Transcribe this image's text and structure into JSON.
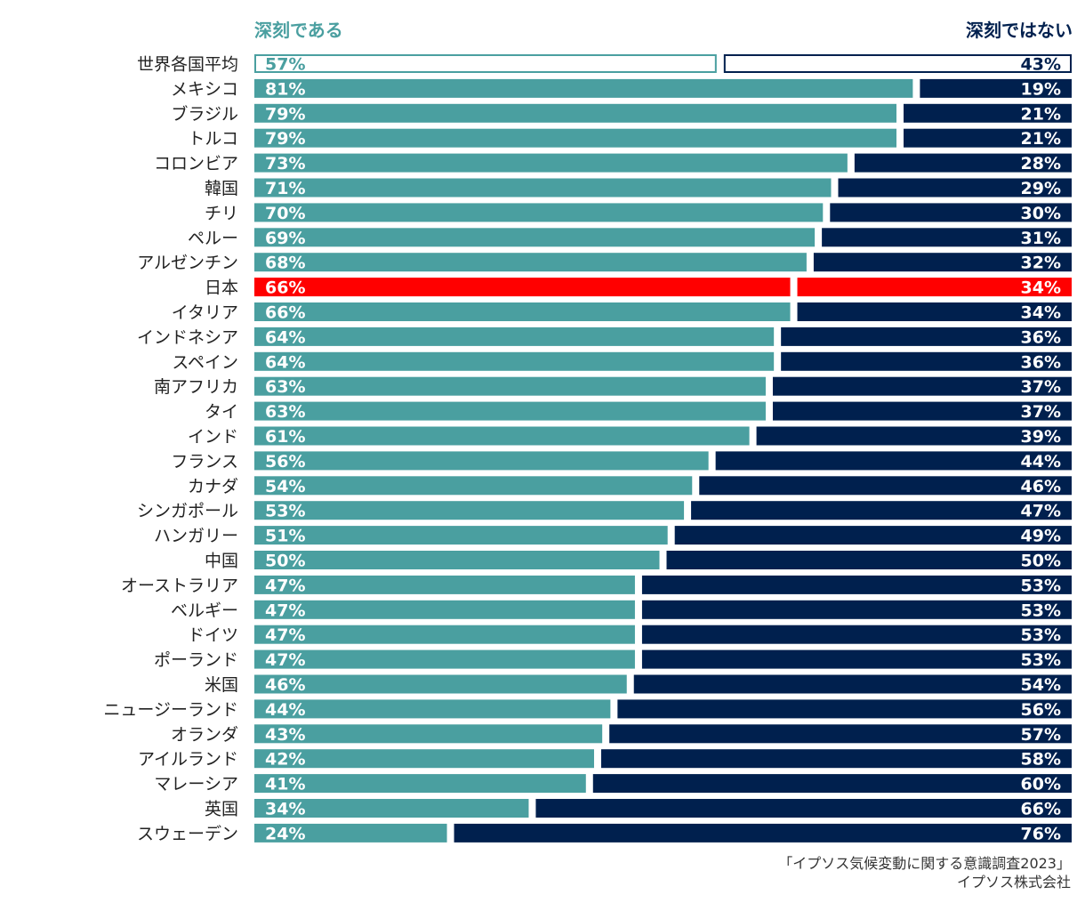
{
  "chart_data": {
    "type": "bar",
    "orientation": "horizontal-stacked",
    "legend": [
      {
        "name": "深刻である",
        "color": "#4a9fa0"
      },
      {
        "name": "深刻ではない",
        "color": "#00204e"
      }
    ],
    "highlight_color": "#ff0000",
    "average_outline_color": "#4a9fa0",
    "average_outline_color_right": "#00204e",
    "categories": [
      "世界各国平均",
      "メキシコ",
      "ブラジル",
      "トルコ",
      "コロンビア",
      "韓国",
      "チリ",
      "ペルー",
      "アルゼンチン",
      "日本",
      "イタリア",
      "インドネシア",
      "スペイン",
      "南アフリカ",
      "タイ",
      "インド",
      "フランス",
      "カナダ",
      "シンガポール",
      "ハンガリー",
      "中国",
      "オーストラリア",
      "ベルギー",
      "ドイツ",
      "ポーランド",
      "米国",
      "ニュージーランド",
      "オランダ",
      "アイルランド",
      "マレーシア",
      "英国",
      "スウェーデン"
    ],
    "series": [
      {
        "name": "深刻である",
        "values": [
          57,
          81,
          79,
          79,
          73,
          71,
          70,
          69,
          68,
          66,
          66,
          64,
          64,
          63,
          63,
          61,
          56,
          54,
          53,
          51,
          50,
          47,
          47,
          47,
          47,
          46,
          44,
          43,
          42,
          41,
          34,
          24
        ],
        "labels": [
          "57%",
          "81%",
          "79%",
          "79%",
          "73%",
          "71%",
          "70%",
          "69%",
          "68%",
          "66%",
          "66%",
          "64%",
          "64%",
          "63%",
          "63%",
          "61%",
          "56%",
          "54%",
          "53%",
          "51%",
          "50%",
          "47%",
          "47%",
          "47%",
          "47%",
          "46%",
          "44%",
          "43%",
          "42%",
          "41%",
          "34%",
          "24%"
        ]
      },
      {
        "name": "深刻ではない",
        "values": [
          43,
          19,
          21,
          21,
          28,
          29,
          30,
          31,
          32,
          34,
          34,
          36,
          36,
          37,
          37,
          39,
          44,
          46,
          47,
          49,
          50,
          53,
          53,
          53,
          53,
          54,
          56,
          57,
          58,
          60,
          66,
          76
        ],
        "labels": [
          "43%",
          "19%",
          "21%",
          "21%",
          "28%",
          "29%",
          "30%",
          "31%",
          "32%",
          "34%",
          "34%",
          "36%",
          "36%",
          "37%",
          "37%",
          "39%",
          "44%",
          "46%",
          "47%",
          "49%",
          "50%",
          "53%",
          "53%",
          "53%",
          "53%",
          "54%",
          "56%",
          "57%",
          "58%",
          "60%",
          "66%",
          "76%"
        ]
      }
    ],
    "average_index": 0,
    "highlight_index": 9,
    "xlim": [
      0,
      100
    ]
  },
  "source": {
    "line1": "「イプソス気候変動に関する意識調査2023」",
    "line2": "イプソス株式会社"
  }
}
